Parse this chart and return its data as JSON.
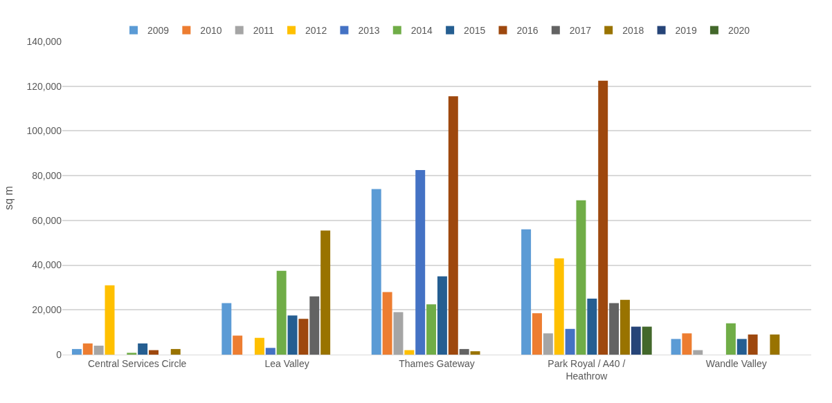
{
  "chart_data": {
    "type": "bar",
    "ylabel": "sq m",
    "categories": [
      "Central Services Circle",
      "Lea Valley",
      "Thames Gateway",
      "Park Royal / A40 / Heathrow",
      "Wandle Valley"
    ],
    "series": [
      {
        "name": "2009",
        "color": "#5b9bd5",
        "values": [
          2500,
          23000,
          74000,
          56000,
          7000
        ]
      },
      {
        "name": "2010",
        "color": "#ed7d31",
        "values": [
          5000,
          8500,
          28000,
          18500,
          9500
        ]
      },
      {
        "name": "2011",
        "color": "#a5a5a5",
        "values": [
          4000,
          0,
          19000,
          9500,
          2000
        ]
      },
      {
        "name": "2012",
        "color": "#ffc000",
        "values": [
          31000,
          7500,
          2000,
          43000,
          0
        ]
      },
      {
        "name": "2013",
        "color": "#4472c4",
        "values": [
          0,
          3000,
          82500,
          11500,
          0
        ]
      },
      {
        "name": "2014",
        "color": "#70ad47",
        "values": [
          800,
          37500,
          22500,
          69000,
          14000
        ]
      },
      {
        "name": "2015",
        "color": "#255e91",
        "values": [
          5000,
          17500,
          35000,
          25000,
          7000
        ]
      },
      {
        "name": "2016",
        "color": "#9e480e",
        "values": [
          2000,
          16000,
          115500,
          122500,
          9000
        ]
      },
      {
        "name": "2017",
        "color": "#636363",
        "values": [
          0,
          26000,
          2500,
          23000,
          0
        ]
      },
      {
        "name": "2018",
        "color": "#997300",
        "values": [
          2500,
          55500,
          1500,
          24500,
          9000
        ]
      },
      {
        "name": "2019",
        "color": "#264478",
        "values": [
          0,
          0,
          0,
          12500,
          0
        ]
      },
      {
        "name": "2020",
        "color": "#43682b",
        "values": [
          0,
          0,
          0,
          12500,
          0
        ]
      }
    ],
    "ylim": [
      0,
      140000
    ],
    "yticks": [
      {
        "value": 0,
        "label": "0"
      },
      {
        "value": 20000,
        "label": "20,000"
      },
      {
        "value": 40000,
        "label": "40,000"
      },
      {
        "value": 60000,
        "label": "60,000"
      },
      {
        "value": 80000,
        "label": "80,000"
      },
      {
        "value": 100000,
        "label": "100,000"
      },
      {
        "value": 120000,
        "label": "120,000"
      },
      {
        "value": 140000,
        "label": "140,000"
      }
    ],
    "grid": "y",
    "legend": "top"
  }
}
